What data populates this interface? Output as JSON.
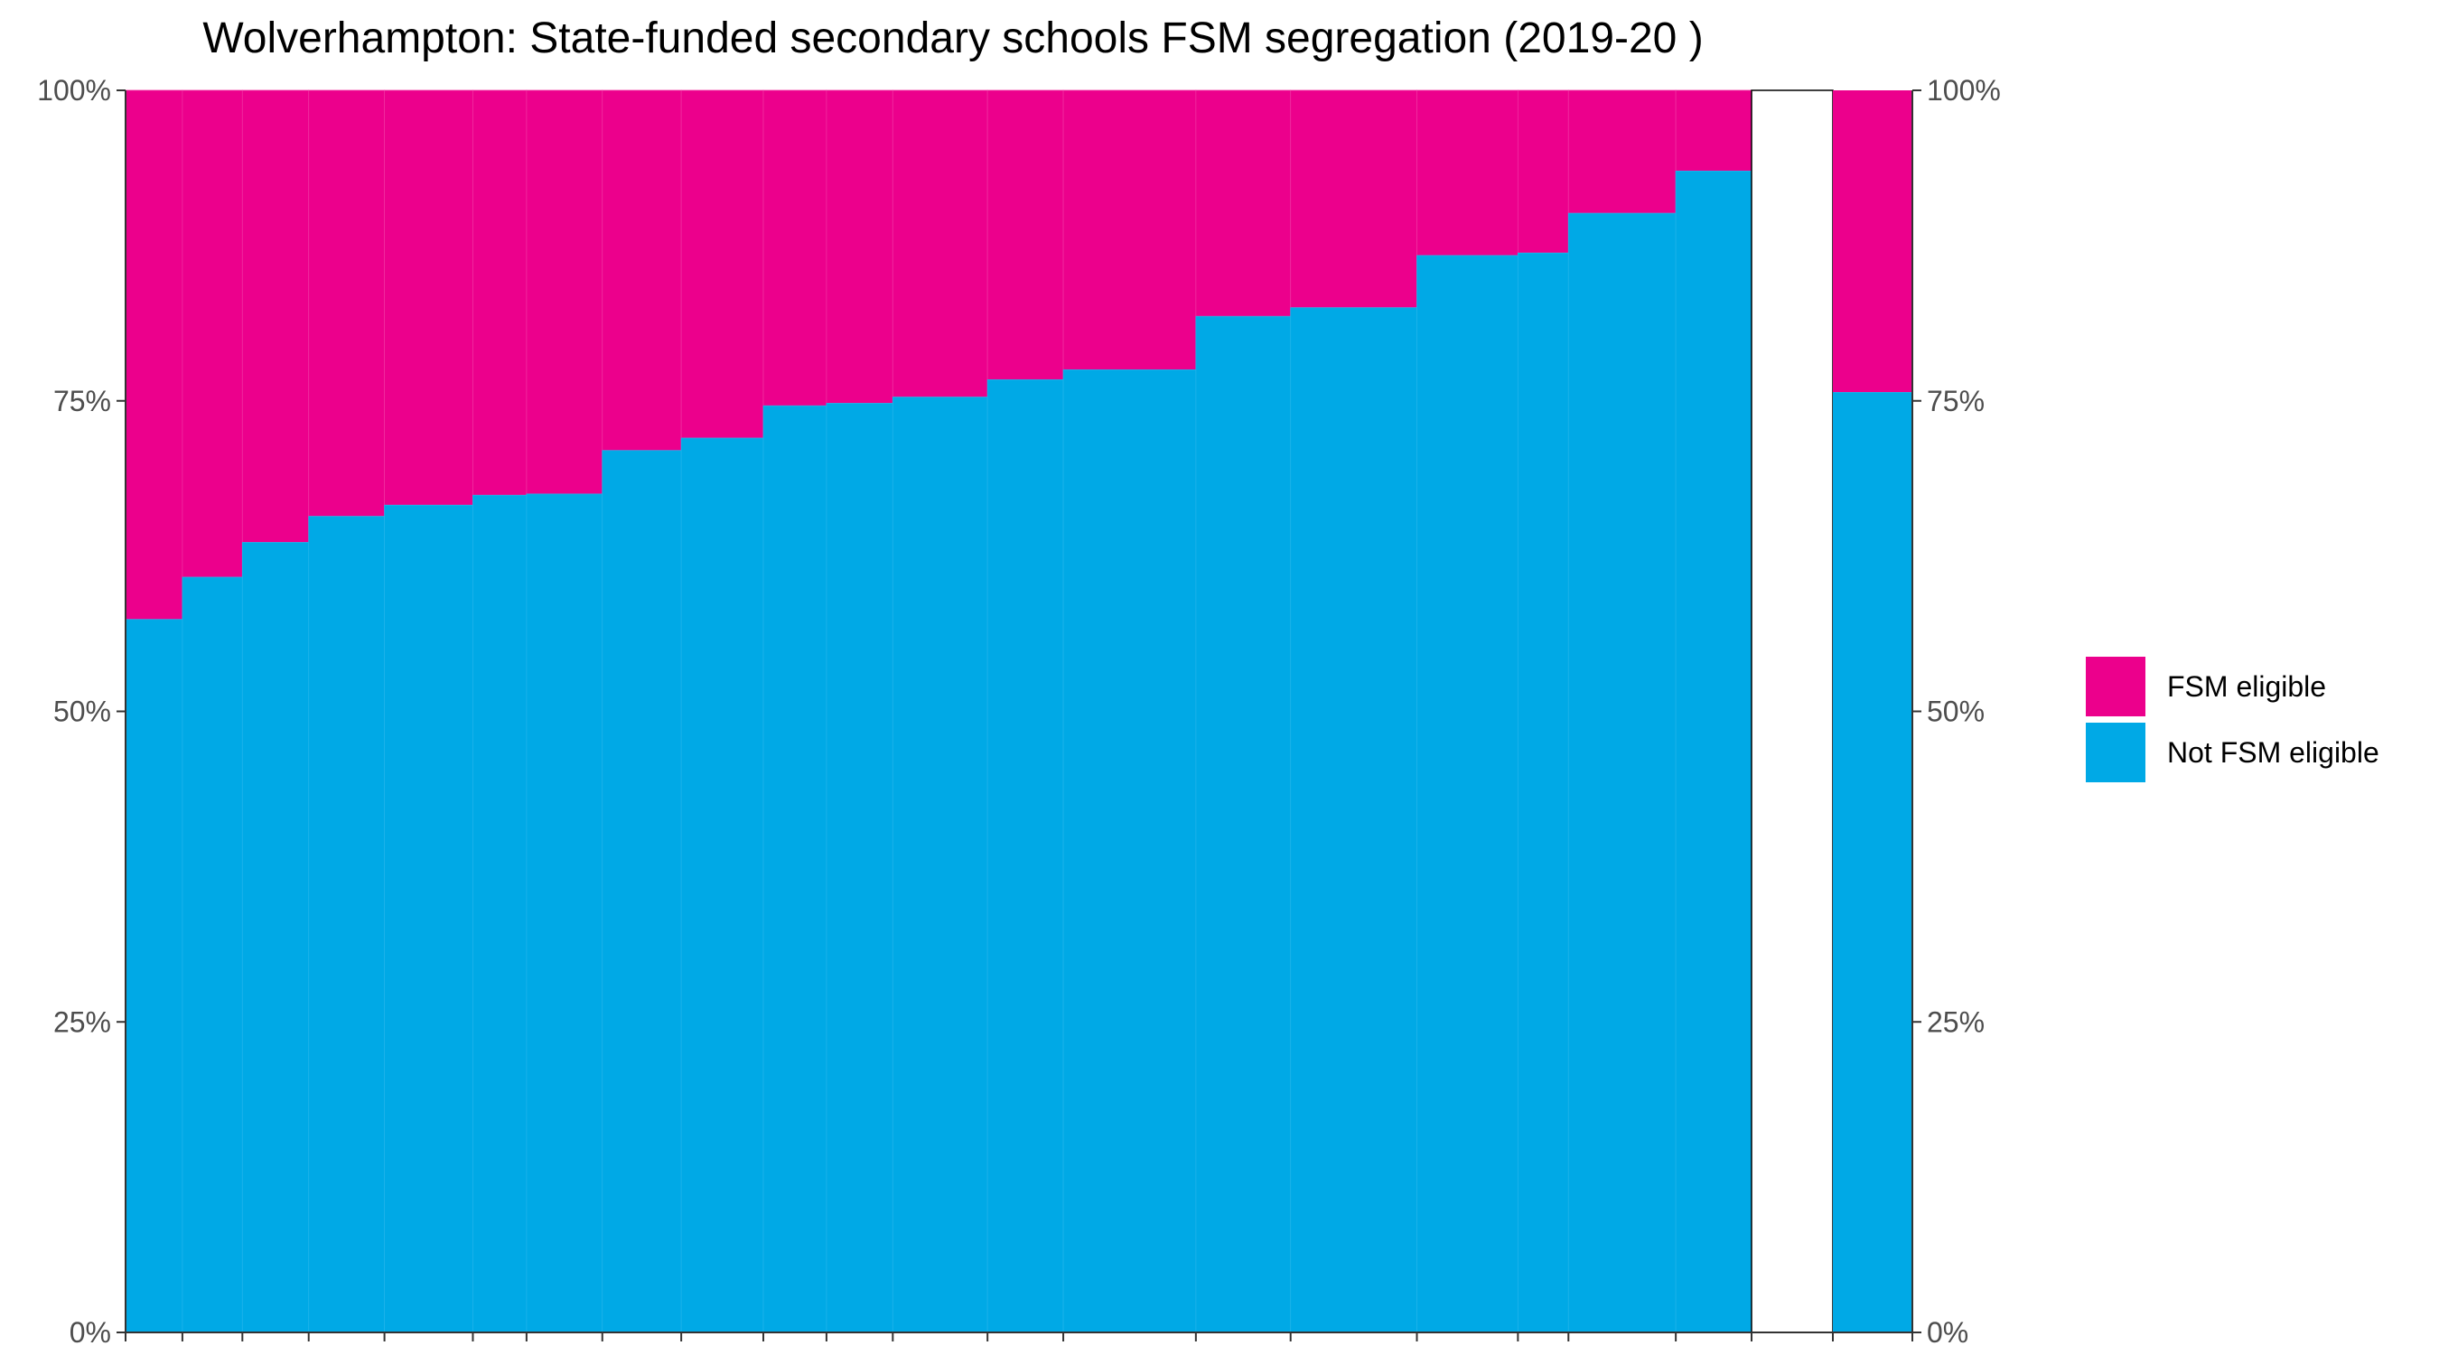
{
  "chart_data": {
    "type": "bar",
    "stacked": true,
    "variable_width": true,
    "title": "Wolverhampton: State-funded secondary schools FSM segregation (2019-20 )",
    "xlabel": "",
    "ylabel": "",
    "ylim": [
      0,
      1
    ],
    "y_ticks": [
      "0%",
      "25%",
      "50%",
      "75%",
      "100%"
    ],
    "y_tick_values": [
      0,
      0.25,
      0.5,
      0.75,
      1.0
    ],
    "secondary_y_axis": true,
    "grid": false,
    "legend_position": "right",
    "colors": {
      "fsm": "#EC008C",
      "not_fsm": "#00A9E6"
    },
    "legend": [
      "FSM eligible",
      "Not FSM eligible"
    ],
    "schools_width_relative": [
      0.9,
      0.95,
      1.05,
      1.2,
      1.4,
      0.85,
      1.2,
      1.25,
      1.3,
      1.0,
      1.05,
      1.5,
      1.2,
      2.1,
      1.5,
      2.0,
      1.6,
      0.8,
      1.7,
      1.2
    ],
    "schools_not_fsm_share": [
      0.574,
      0.608,
      0.636,
      0.657,
      0.666,
      0.674,
      0.675,
      0.71,
      0.72,
      0.746,
      0.748,
      0.753,
      0.767,
      0.775,
      0.818,
      0.825,
      0.867,
      0.869,
      0.901,
      0.935
    ],
    "overall": {
      "not_fsm_share": 0.757,
      "width_relative": 1.25
    }
  }
}
